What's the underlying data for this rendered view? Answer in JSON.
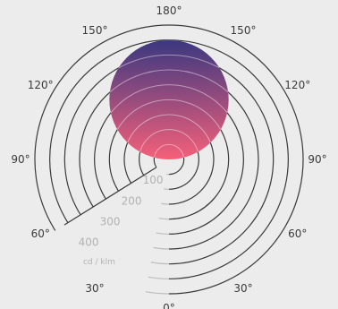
{
  "chart_data": {
    "type": "polar",
    "title": "",
    "angular_ticks": [
      {
        "angle": 180,
        "text": "180°"
      },
      {
        "angle": 150,
        "text": "150°",
        "side": "left"
      },
      {
        "angle": 150,
        "text": "150°",
        "side": "right"
      },
      {
        "angle": 120,
        "text": "120°",
        "side": "left"
      },
      {
        "angle": 120,
        "text": "120°",
        "side": "right"
      },
      {
        "angle": 90,
        "text": "90°",
        "side": "left"
      },
      {
        "angle": 90,
        "text": "90°",
        "side": "right"
      },
      {
        "angle": 60,
        "text": "60°",
        "side": "left"
      },
      {
        "angle": 60,
        "text": "60°",
        "side": "right"
      },
      {
        "angle": 30,
        "text": "30°",
        "side": "left"
      },
      {
        "angle": 30,
        "text": "30°",
        "side": "right"
      },
      {
        "angle": 0,
        "text": "0°"
      }
    ],
    "radial_ticks": [
      100,
      200,
      300,
      400
    ],
    "radial_rings": [
      50,
      100,
      150,
      200,
      250,
      300,
      350,
      400,
      450
    ],
    "radial_unit": "cd / klm",
    "rmax": 450,
    "series": [
      {
        "shape": "circle",
        "centre_angle": 180,
        "diameter": 400,
        "colors": {
          "start": "#f5607a",
          "end": "#3a3880"
        }
      }
    ],
    "colors": {
      "ring": "#3a3a3a",
      "ring_faded": "#bdbdbd",
      "background": "#ececec"
    }
  }
}
